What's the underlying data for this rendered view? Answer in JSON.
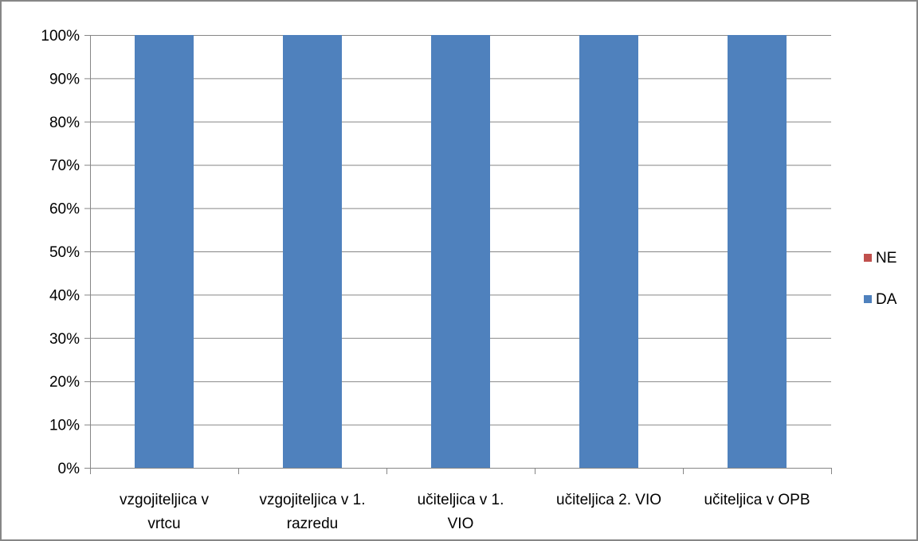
{
  "chart_data": {
    "type": "bar",
    "stacked": true,
    "percent_stacked": true,
    "categories": [
      [
        "vzgojiteljica v",
        "vrtcu"
      ],
      [
        "vzgojiteljica v 1.",
        "razredu"
      ],
      [
        "učiteljica v 1.",
        "VIO"
      ],
      [
        "učiteljica 2. VIO"
      ],
      [
        "učiteljica v OPB"
      ]
    ],
    "series": [
      {
        "name": "DA",
        "color": "#4F81BD",
        "values": [
          100,
          100,
          100,
          100,
          100
        ]
      },
      {
        "name": "NE",
        "color": "#C0504D",
        "values": [
          0,
          0,
          0,
          0,
          0
        ]
      }
    ],
    "ylim": [
      0,
      100
    ],
    "yticks": [
      0,
      10,
      20,
      30,
      40,
      50,
      60,
      70,
      80,
      90,
      100
    ],
    "ytick_labels": [
      "0%",
      "10%",
      "20%",
      "30%",
      "40%",
      "50%",
      "60%",
      "70%",
      "80%",
      "90%",
      "100%"
    ],
    "legend": [
      "NE",
      "DA"
    ],
    "legend_position": "right",
    "grid": true,
    "gridline_color": "#868686",
    "title": "",
    "xlabel": "",
    "ylabel": ""
  }
}
